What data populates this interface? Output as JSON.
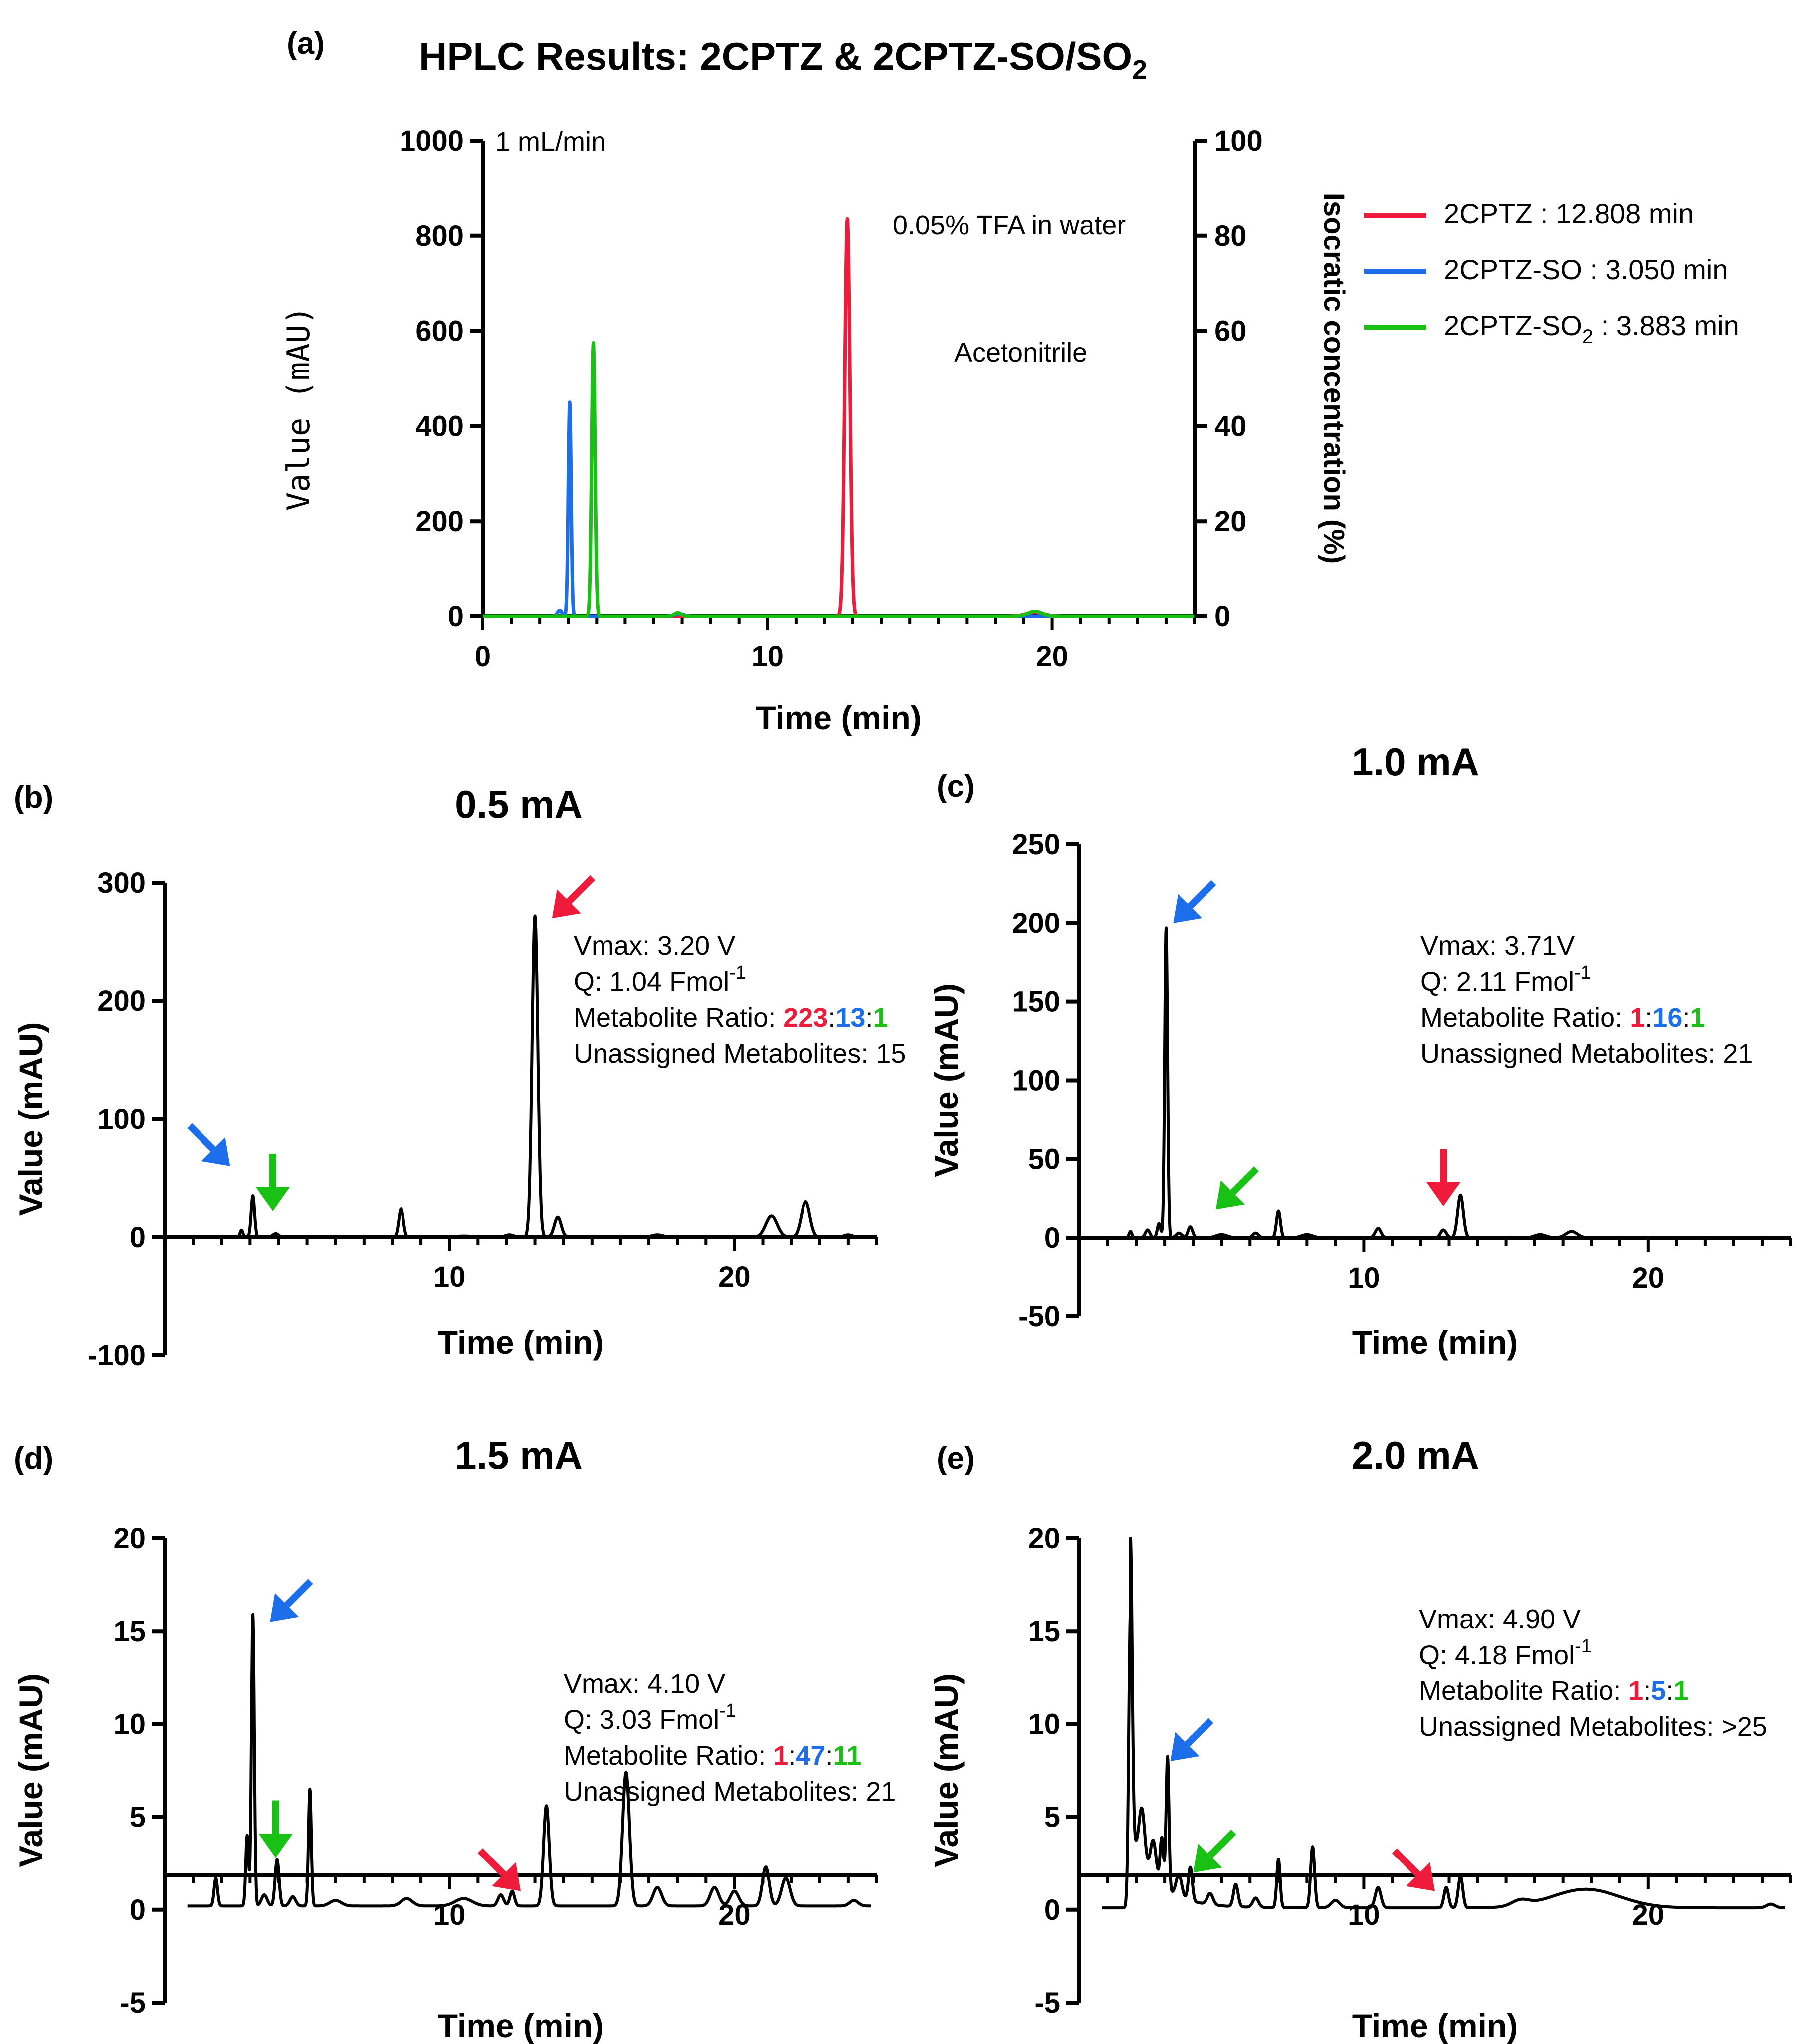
{
  "figure": {
    "title": "HPLC Results: 2CPTZ & 2CPTZ-SO/SO",
    "title_sub": "2"
  },
  "colors": {
    "red": "#EF1B3A",
    "blue": "#1C6EEB",
    "green": "#19C114",
    "black": "#000000"
  },
  "chart_data": [
    {
      "panel": "a",
      "label": "(a)",
      "type": "line",
      "title": "",
      "xlabel": "Time (min)",
      "ylabel": "Value (mAU)",
      "y2label": "Isocratic concentration (%)",
      "xlim": [
        0,
        25
      ],
      "ylim": [
        0,
        1000
      ],
      "y2lim": [
        0,
        100
      ],
      "xticks": [
        0,
        10,
        20
      ],
      "yticks": [
        0,
        200,
        400,
        600,
        800,
        1000
      ],
      "y2ticks": [
        0,
        20,
        40,
        60,
        80,
        100
      ],
      "annotations": {
        "flow": "1 mL/min",
        "solvent_a": "0.05% TFA in water",
        "solvent_b": "Acetonitrile"
      },
      "series": [
        {
          "name": "2CPTZ : 12.808 min",
          "color": "red",
          "peaks": [
            [
              12.81,
              835,
              0.09
            ],
            [
              19.4,
              8,
              0.3
            ]
          ]
        },
        {
          "name": "2CPTZ-SO : 3.050 min",
          "color": "blue",
          "peaks": [
            [
              3.05,
              450,
              0.05
            ],
            [
              2.7,
              12,
              0.08
            ],
            [
              6.9,
              5,
              0.15
            ]
          ]
        },
        {
          "name": "2CPTZ-SO : 3.883 min",
          "name_sub": "2",
          "color": "green",
          "peaks": [
            [
              3.88,
              575,
              0.06
            ],
            [
              6.85,
              7,
              0.12
            ],
            [
              19.4,
              10,
              0.25
            ]
          ]
        }
      ]
    },
    {
      "panel": "b",
      "label": "(b)",
      "type": "line",
      "title": "0.5 mA",
      "xlabel": "Time (min)",
      "ylabel": "Value (mAU)",
      "xlim": [
        0,
        25
      ],
      "ylim": [
        -100,
        300
      ],
      "xticks": [
        10,
        20
      ],
      "yticks": [
        -100,
        0,
        100,
        200,
        300
      ],
      "info": {
        "vmax": "Vmax: 3.20 V",
        "q": "Q: 1.04 Fmol",
        "q_sup": "-1",
        "ratio_label": "Metabolite Ratio: ",
        "ratio": [
          "223",
          "13",
          "1"
        ],
        "unassigned": "Unassigned Metabolites: 15"
      },
      "arrows": [
        {
          "color": "blue",
          "at": [
            2.3,
            60
          ],
          "dir": "down-right"
        },
        {
          "color": "green",
          "at": [
            3.8,
            22
          ],
          "dir": "down"
        },
        {
          "color": "red",
          "at": [
            13.6,
            270
          ],
          "dir": "down-left"
        }
      ],
      "series": [
        {
          "name": "chromatogram",
          "color": "black",
          "baseline": 0,
          "peaks": [
            [
              2.7,
              6,
              0.05
            ],
            [
              3.1,
              35,
              0.06
            ],
            [
              3.9,
              3,
              0.1
            ],
            [
              8.3,
              24,
              0.08
            ],
            [
              10.5,
              1,
              0.3
            ],
            [
              12.1,
              2,
              0.15
            ],
            [
              13.0,
              272,
              0.1
            ],
            [
              13.8,
              17,
              0.12
            ],
            [
              17.3,
              2,
              0.2
            ],
            [
              21.3,
              18,
              0.2
            ],
            [
              22.5,
              30,
              0.15
            ],
            [
              24.0,
              2,
              0.15
            ]
          ]
        }
      ]
    },
    {
      "panel": "c",
      "label": "(c)",
      "type": "line",
      "title": "1.0 mA",
      "xlabel": "Time (min)",
      "ylabel": "Value (mAU)",
      "xlim": [
        0,
        25
      ],
      "ylim": [
        -50,
        250
      ],
      "xticks": [
        10,
        20
      ],
      "yticks": [
        -50,
        0,
        50,
        100,
        150,
        200,
        250
      ],
      "info": {
        "vmax": "Vmax: 3.71V",
        "q": "Q: 2.11 Fmol",
        "q_sup": "-1",
        "ratio_label": "Metabolite Ratio: ",
        "ratio": [
          "1",
          "16",
          "1"
        ],
        "unassigned": "Unassigned Metabolites: 21"
      },
      "arrows": [
        {
          "color": "blue",
          "at": [
            3.3,
            200
          ],
          "dir": "down-left"
        },
        {
          "color": "green",
          "at": [
            4.8,
            18
          ],
          "dir": "down-left"
        },
        {
          "color": "red",
          "at": [
            12.8,
            20
          ],
          "dir": "down"
        }
      ],
      "series": [
        {
          "name": "chromatogram",
          "color": "black",
          "baseline": 0,
          "peaks": [
            [
              1.8,
              4,
              0.05
            ],
            [
              2.4,
              5,
              0.08
            ],
            [
              2.8,
              9,
              0.06
            ],
            [
              3.05,
              197,
              0.05
            ],
            [
              3.5,
              3,
              0.1
            ],
            [
              3.9,
              7,
              0.08
            ],
            [
              5.0,
              2,
              0.2
            ],
            [
              6.2,
              3,
              0.1
            ],
            [
              7.0,
              17,
              0.07
            ],
            [
              8.0,
              2,
              0.2
            ],
            [
              10.5,
              6,
              0.1
            ],
            [
              12.8,
              5,
              0.1
            ],
            [
              13.4,
              27,
              0.1
            ],
            [
              16.2,
              2,
              0.2
            ],
            [
              17.3,
              4,
              0.2
            ]
          ]
        }
      ]
    },
    {
      "panel": "d",
      "label": "(d)",
      "type": "line",
      "title": "1.5 mA",
      "xlabel": "Time (min)",
      "ylabel": "Value (mAU)",
      "xlim": [
        0,
        25
      ],
      "ylim": [
        -5,
        20
      ],
      "xticks": [
        10,
        20
      ],
      "yticks": [
        -5,
        0,
        5,
        10,
        15,
        20
      ],
      "info": {
        "vmax": "Vmax: 4.10 V",
        "q": "Q: 3.03 Fmol",
        "q_sup": "-1",
        "ratio_label": "Metabolite Ratio: ",
        "ratio": [
          "1",
          "47",
          "11"
        ],
        "unassigned": "Unassigned Metabolites: 21"
      },
      "arrows": [
        {
          "color": "blue",
          "at": [
            3.7,
            15.5
          ],
          "dir": "down-left"
        },
        {
          "color": "green",
          "at": [
            3.9,
            2.8
          ],
          "dir": "down"
        },
        {
          "color": "red",
          "at": [
            12.5,
            1.0
          ],
          "dir": "down-right"
        }
      ],
      "series": [
        {
          "name": "chromatogram",
          "color": "black",
          "baseline": 0.2,
          "peaks": [
            [
              1.8,
              1.5,
              0.06
            ],
            [
              2.9,
              3.8,
              0.05
            ],
            [
              3.1,
              15.7,
              0.05
            ],
            [
              3.5,
              0.6,
              0.1
            ],
            [
              3.95,
              2.5,
              0.07
            ],
            [
              4.5,
              0.5,
              0.1
            ],
            [
              5.1,
              6.3,
              0.05
            ],
            [
              6.0,
              0.3,
              0.2
            ],
            [
              8.5,
              0.4,
              0.2
            ],
            [
              10.5,
              0.4,
              0.3
            ],
            [
              11.8,
              0.6,
              0.1
            ],
            [
              12.2,
              0.8,
              0.08
            ],
            [
              13.4,
              5.4,
              0.1
            ],
            [
              16.2,
              7.2,
              0.12
            ],
            [
              17.3,
              1.0,
              0.15
            ],
            [
              19.3,
              1.0,
              0.15
            ],
            [
              20.0,
              0.8,
              0.15
            ],
            [
              21.1,
              2.1,
              0.12
            ],
            [
              21.8,
              1.5,
              0.15
            ],
            [
              24.2,
              0.3,
              0.15
            ]
          ]
        }
      ]
    },
    {
      "panel": "e",
      "label": "(e)",
      "type": "line",
      "title": "2.0 mA",
      "xlabel": "Time (min)",
      "ylabel": "Value (mAU)",
      "xlim": [
        0,
        25
      ],
      "ylim": [
        -5,
        20
      ],
      "xticks": [
        10,
        20
      ],
      "yticks": [
        -5,
        0,
        5,
        10,
        15,
        20
      ],
      "info": {
        "vmax": "Vmax: 4.90 V",
        "q": "Q: 4.18 Fmol",
        "q_sup": "-1",
        "ratio_label": "Metabolite Ratio: ",
        "ratio": [
          "1",
          "5",
          "1"
        ],
        "unassigned": "Unassigned Metabolites: >25"
      },
      "arrows": [
        {
          "color": "blue",
          "at": [
            3.2,
            8.0
          ],
          "dir": "down-left"
        },
        {
          "color": "green",
          "at": [
            4.0,
            2.0
          ],
          "dir": "down-left"
        },
        {
          "color": "red",
          "at": [
            12.5,
            1.0
          ],
          "dir": "down-right"
        }
      ],
      "series": [
        {
          "name": "chromatogram",
          "color": "black",
          "baseline": 0.1,
          "peaks": [
            [
              1.8,
              16.0,
              0.06
            ],
            [
              2.2,
              2.8,
              0.1
            ],
            [
              2.6,
              2.0,
              0.1
            ],
            [
              2.9,
              2.6,
              0.06
            ],
            [
              3.1,
              7.2,
              0.05
            ],
            [
              3.5,
              1.2,
              0.1
            ],
            [
              3.9,
              1.8,
              0.07
            ],
            [
              4.6,
              0.6,
              0.1
            ],
            [
              5.5,
              1.2,
              0.08
            ],
            [
              6.2,
              0.5,
              0.1
            ],
            [
              7.0,
              2.6,
              0.06
            ],
            [
              8.2,
              3.3,
              0.07
            ],
            [
              9.0,
              0.4,
              0.15
            ],
            [
              10.5,
              1.1,
              0.1
            ],
            [
              12.9,
              1.1,
              0.08
            ],
            [
              13.4,
              1.7,
              0.08
            ],
            [
              15.5,
              0.3,
              0.3
            ],
            [
              17.8,
              1.0,
              1.2
            ],
            [
              24.3,
              0.2,
              0.15
            ]
          ],
          "tail": [
            1.8,
            4.0,
            0.9
          ]
        }
      ]
    }
  ]
}
